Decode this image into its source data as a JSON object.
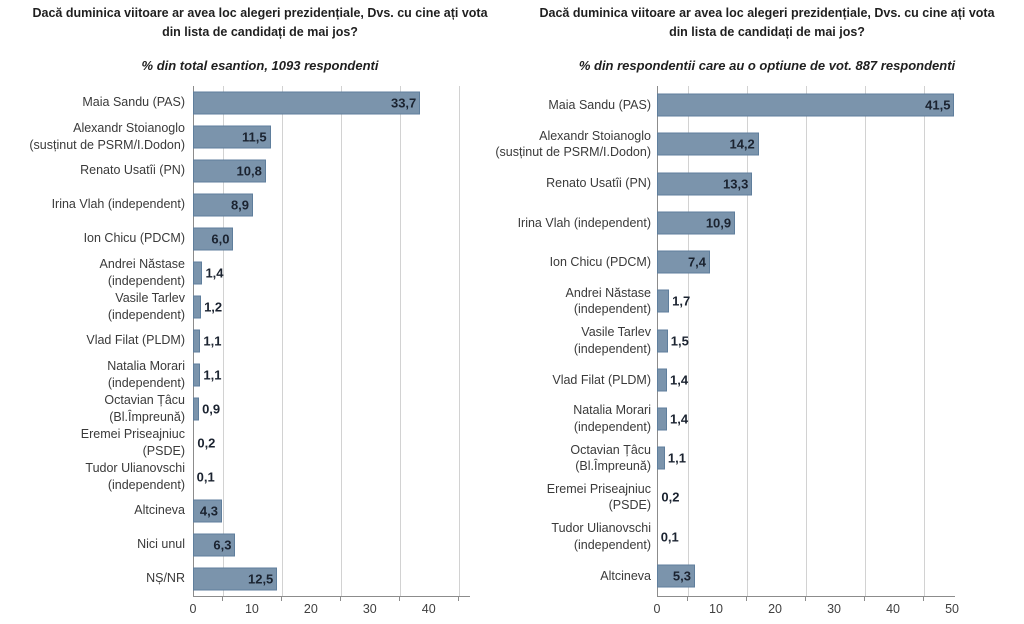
{
  "colors": {
    "bar_fill": "#7B94AC",
    "bar_border": "#5F7E9C",
    "value_text": "#1B2330",
    "label_text": "#3A3A3A",
    "title_text": "#1F1F1F",
    "grid_line": "#D2D2D2",
    "axis_line": "#8C8C8C",
    "tick_text": "#3F3F3F"
  },
  "chart_data": [
    {
      "type": "bar",
      "orientation": "horizontal",
      "title": "Dacă duminica viitoare ar avea loc alegeri prezidențiale, Dvs. cu cine ați vota\ndin lista de candidați de mai jos?",
      "subtitle": "% din total esantion, 1093 respondenti",
      "categories": [
        "Maia Sandu (PAS)",
        "Alexandr Stoianoglo\n(susținut de PSRM/I.Dodon)",
        "Renato Usatîi (PN)",
        "Irina Vlah (independent)",
        "Ion Chicu (PDCM)",
        "Andrei Năstase\n(independent)",
        "Vasile Tarlev\n(independent)",
        "Vlad Filat (PLDM)",
        "Natalia Morari\n(independent)",
        "Octavian Țâcu\n(Bl.Împreună)",
        "Eremei Priseajniuc\n(PSDE)",
        "Tudor Ulianovschi\n(independent)",
        "Altcineva",
        "Nici unul",
        "NȘ/NR"
      ],
      "values": [
        33.7,
        11.5,
        10.8,
        8.9,
        6.0,
        1.4,
        1.2,
        1.1,
        1.1,
        0.9,
        0.2,
        0.1,
        4.3,
        6.3,
        12.5
      ],
      "value_labels": [
        "33,7",
        "11,5",
        "10,8",
        "8,9",
        "6,0",
        "1,4",
        "1,2",
        "1,1",
        "1,1",
        "0,9",
        "0,2",
        "0,1",
        "4,3",
        "6,3",
        "12,5"
      ],
      "xlim": [
        0,
        47
      ],
      "tick_labels": [
        0,
        10,
        20,
        30,
        40
      ],
      "gridlines_at": [
        5,
        15,
        25,
        35,
        45
      ],
      "grid": true,
      "legend": "none"
    },
    {
      "type": "bar",
      "orientation": "horizontal",
      "title": "Dacă duminica viitoare ar avea loc alegeri prezidențiale, Dvs. cu cine ați vota\ndin lista de candidați de mai jos?",
      "subtitle": "% din respondentii care au o optiune de vot. 887 respondenti",
      "categories": [
        "Maia Sandu (PAS)",
        "Alexandr Stoianoglo\n(susținut de PSRM/I.Dodon)",
        "Renato Usatîi (PN)",
        "Irina Vlah (independent)",
        "Ion Chicu (PDCM)",
        "Andrei Năstase\n(independent)",
        "Vasile Tarlev\n(independent)",
        "Vlad Filat (PLDM)",
        "Natalia Morari\n(independent)",
        "Octavian Țâcu\n(Bl.Împreună)",
        "Eremei Priseajniuc\n(PSDE)",
        "Tudor Ulianovschi\n(independent)",
        "Altcineva"
      ],
      "values": [
        41.5,
        14.2,
        13.3,
        10.9,
        7.4,
        1.7,
        1.5,
        1.4,
        1.4,
        1.1,
        0.2,
        0.1,
        5.3
      ],
      "value_labels": [
        "41,5",
        "14,2",
        "13,3",
        "10,9",
        "7,4",
        "1,7",
        "1,5",
        "1,4",
        "1,4",
        "1,1",
        "0,2",
        "0,1",
        "5,3"
      ],
      "xlim": [
        0,
        50.5
      ],
      "tick_labels": [
        0,
        10,
        20,
        30,
        40,
        50
      ],
      "gridlines_at": [
        5,
        15,
        25,
        35,
        45
      ],
      "grid": true,
      "legend": "none"
    }
  ]
}
